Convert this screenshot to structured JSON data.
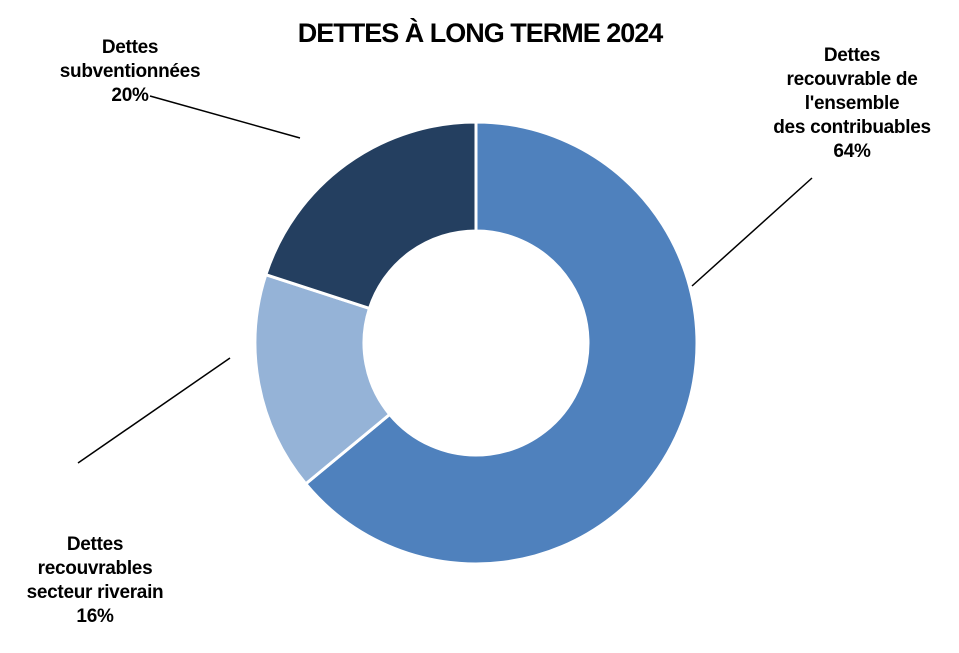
{
  "chart_data": {
    "type": "pie",
    "title": "DETTES À LONG TERME 2024",
    "slices": [
      {
        "label": "Dettes\nrecouvrable de\nl'ensemble\ndes contribuables",
        "value": 64,
        "value_label": "64%",
        "color": "#4f81bd"
      },
      {
        "label": "Dettes\nrecouvrables\nsecteur riverain",
        "value": 16,
        "value_label": "16%",
        "color": "#95b3d7"
      },
      {
        "label": "Dettes\nsubventionnées",
        "value": 20,
        "value_label": "20%",
        "color": "#243f60"
      }
    ],
    "legend": "none",
    "donut": true
  }
}
